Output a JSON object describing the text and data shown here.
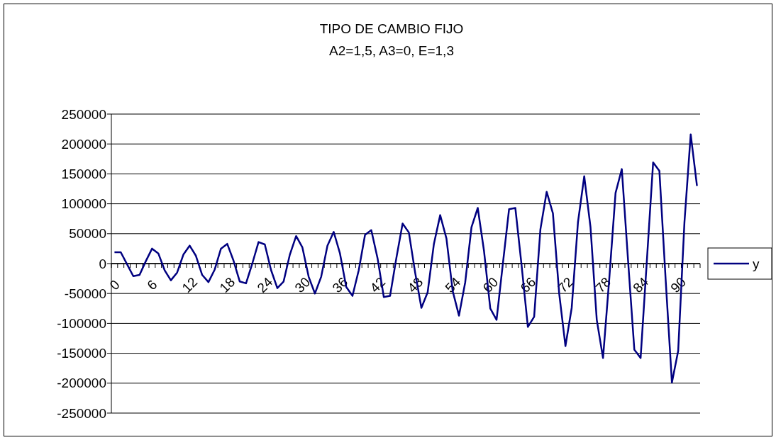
{
  "chart_data": {
    "type": "line",
    "title": "TIPO DE CAMBIO FIJO",
    "subtitle": "A2=1,5, A3=0, E=1,3",
    "categories": [
      "0",
      null,
      null,
      null,
      null,
      null,
      "6",
      null,
      null,
      null,
      null,
      null,
      "12",
      null,
      null,
      null,
      null,
      null,
      "18",
      null,
      null,
      null,
      null,
      null,
      "24",
      null,
      null,
      null,
      null,
      null,
      "30",
      null,
      null,
      null,
      null,
      null,
      "36",
      null,
      null,
      null,
      null,
      null,
      "42",
      null,
      null,
      null,
      null,
      null,
      "48",
      null,
      null,
      null,
      null,
      null,
      "54",
      null,
      null,
      null,
      null,
      null,
      "60",
      null,
      null,
      null,
      null,
      null,
      "66",
      null,
      null,
      null,
      null,
      null,
      "72",
      null,
      null,
      null,
      null,
      null,
      "78",
      null,
      null,
      null,
      null,
      null,
      "84",
      null,
      null,
      null,
      null,
      null,
      "90",
      null,
      null,
      null
    ],
    "series": [
      {
        "name": "y",
        "color": "#000080",
        "values": [
          19000,
          19000,
          -1000,
          -21000,
          -19000,
          4000,
          25000,
          17000,
          -11000,
          -28000,
          -15000,
          15000,
          30000,
          13000,
          -19000,
          -31000,
          -10000,
          25000,
          33000,
          5000,
          -30000,
          -33000,
          0,
          36000,
          32000,
          -11000,
          -41000,
          -30000,
          15000,
          46000,
          27000,
          -22000,
          -50000,
          -22000,
          30000,
          53000,
          17000,
          -39000,
          -54000,
          -11000,
          48000,
          56000,
          9000,
          -56000,
          -54000,
          9000,
          67000,
          52000,
          -15000,
          -74000,
          -48000,
          33000,
          81000,
          42000,
          -46000,
          -87000,
          -31000,
          61000,
          93000,
          21000,
          -75000,
          -94000,
          -1000,
          91000,
          93000,
          -3000,
          -106000,
          -89000,
          57000,
          120000,
          84000,
          -50000,
          -138000,
          -74000,
          69000,
          146000,
          61000,
          -94000,
          -158000,
          -25000,
          118000,
          158000,
          5000,
          -144000,
          -158000,
          5000,
          169000,
          155000,
          -27000,
          -199000,
          -146000,
          69000,
          216000,
          130000
        ]
      }
    ],
    "ylim": [
      -250000,
      250000
    ],
    "yticks": [
      -250000,
      -200000,
      -150000,
      -100000,
      -50000,
      0,
      50000,
      100000,
      150000,
      200000,
      250000
    ],
    "grid": "y",
    "legend": "right",
    "marker": "none",
    "line_style": "solid"
  }
}
